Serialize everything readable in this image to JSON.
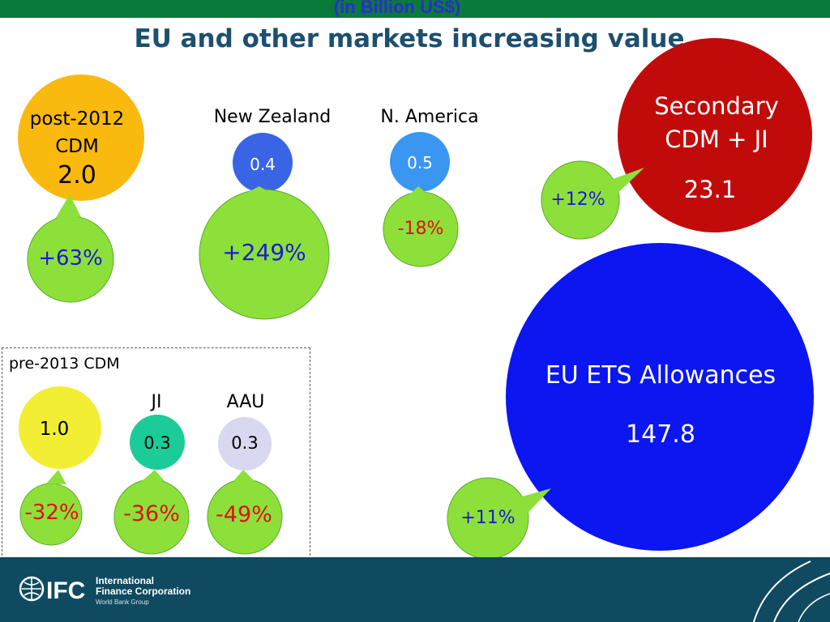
{
  "header": {
    "subtitle": "(in Billion US$)",
    "title": "EU and other markets increasing value"
  },
  "colors": {
    "top_bar": "#0a7a3a",
    "footer": "#0f4a60",
    "change_bubble": "#8de03a",
    "positive_text": "#1a1ad6",
    "negative_text": "#e01010"
  },
  "markets": [
    {
      "id": "post2012-cdm",
      "label_lines": [
        "post-2012",
        "CDM"
      ],
      "value": "2.0",
      "change": "+63%",
      "color": "#f9b90f"
    },
    {
      "id": "new-zealand",
      "label_lines": [
        "New Zealand"
      ],
      "value": "0.4",
      "change": "+249%",
      "color": "#3a64e6"
    },
    {
      "id": "n-america",
      "label_lines": [
        "N. America"
      ],
      "value": "0.5",
      "change": "-18%",
      "color": "#3a96f0"
    },
    {
      "id": "secondary-cdm-ji",
      "label_lines": [
        "Secondary",
        "CDM + JI"
      ],
      "value": "23.1",
      "change": "+12%",
      "color": "#c10b0b"
    },
    {
      "id": "eu-ets",
      "label_lines": [
        "EU ETS Allowances"
      ],
      "value": "147.8",
      "change": "+11%",
      "color": "#0b16f0"
    }
  ],
  "pre2013": {
    "label": "pre-2013 CDM",
    "items": [
      {
        "id": "pre2013-cdm",
        "label_lines": [],
        "value": "1.0",
        "change": "-32%",
        "color": "#f2ee33"
      },
      {
        "id": "ji",
        "label_lines": [
          "JI"
        ],
        "value": "0.3",
        "change": "-36%",
        "color": "#1ccc98"
      },
      {
        "id": "aau",
        "label_lines": [
          "AAU"
        ],
        "value": "0.3",
        "change": "-49%",
        "color": "#d8d8f0"
      }
    ]
  },
  "footer": {
    "logo_text": "IFC",
    "org_line1": "International",
    "org_line2": "Finance Corporation",
    "org_line3": "World Bank Group"
  }
}
